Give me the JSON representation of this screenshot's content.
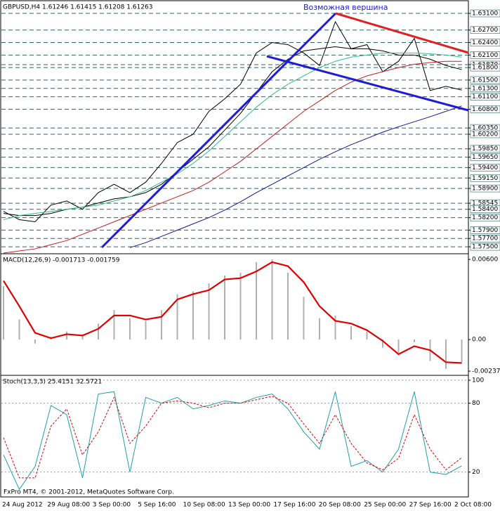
{
  "chart_data": [
    {
      "type": "line",
      "title": "GBPUSD,H4  1.61246 1.61415 1.61208 1.61263",
      "annotation": "Возможная вершина",
      "ylim": [
        1.5735,
        1.6337
      ],
      "grid": true,
      "yticks": [
        {
          "value": 1.631,
          "label": "1.63100"
        },
        {
          "value": 1.627,
          "label": "1.62700"
        },
        {
          "value": 1.624,
          "label": "1.62400"
        },
        {
          "value": 1.621,
          "label": "1.62100"
        },
        {
          "value": 1.6187,
          "label": "1.61870"
        },
        {
          "value": 1.618,
          "label": "1.61800"
        },
        {
          "value": 1.615,
          "label": "1.61500"
        },
        {
          "value": 1.613,
          "label": "1.61300"
        },
        {
          "value": 1.611,
          "label": "1.61100"
        },
        {
          "value": 1.608,
          "label": "1.60800"
        },
        {
          "value": 1.6035,
          "label": "1.60350"
        },
        {
          "value": 1.602,
          "label": "1.60200"
        },
        {
          "value": 1.5985,
          "label": "1.59850"
        },
        {
          "value": 1.5965,
          "label": "1.59650"
        },
        {
          "value": 1.594,
          "label": "1.59400"
        },
        {
          "value": 1.5915,
          "label": "1.59150"
        },
        {
          "value": 1.589,
          "label": "1.58900"
        },
        {
          "value": 1.58545,
          "label": "1.58545"
        },
        {
          "value": 1.584,
          "label": "1.58400"
        },
        {
          "value": 1.582,
          "label": "1.58200"
        },
        {
          "value": 1.579,
          "label": "1.57900"
        },
        {
          "value": 1.577,
          "label": "1.57700"
        },
        {
          "value": 1.575,
          "label": "1.57500"
        }
      ],
      "x_axis_labels": [
        "24 Aug 2012",
        "29 Aug 08:00",
        "3 Sep 00:00",
        "5 Sep 16:00",
        "10 Sep 08:00",
        "13 Sep 00:00",
        "17 Sep 16:00",
        "20 Sep 08:00",
        "25 Sep 00:00",
        "27 Sep 16:00",
        "2 Oct 08:00"
      ],
      "series": [
        {
          "color": "#000000",
          "values": [
            1.5835,
            1.5815,
            1.581,
            1.585,
            1.586,
            1.584,
            1.588,
            1.59,
            1.588,
            1.5905,
            1.595,
            1.6,
            1.602,
            1.6075,
            1.6105,
            1.614,
            1.6215,
            1.624,
            1.6235,
            1.6215,
            1.6185,
            1.629,
            1.6225,
            1.6235,
            1.617,
            1.6195,
            1.625,
            1.6125,
            1.6135,
            1.6126
          ]
        },
        {
          "color": "#000000",
          "values": [
            1.583,
            1.5825,
            1.5825,
            1.583,
            1.584,
            1.5845,
            1.5855,
            1.5865,
            1.587,
            1.588,
            1.59,
            1.593,
            1.596,
            1.599,
            1.603,
            1.607,
            1.612,
            1.617,
            1.62,
            1.622,
            1.6225,
            1.623,
            1.6225,
            1.6225,
            1.622,
            1.621,
            1.621,
            1.62,
            1.6185,
            1.6175
          ]
        },
        {
          "color": "#2fbf7f",
          "values": [
            1.5815,
            1.5825,
            1.583,
            1.5835,
            1.584,
            1.5845,
            1.585,
            1.586,
            1.587,
            1.5885,
            1.5905,
            1.5925,
            1.595,
            1.598,
            1.6015,
            1.605,
            1.6085,
            1.6115,
            1.614,
            1.616,
            1.618,
            1.6195,
            1.6205,
            1.621,
            1.6215,
            1.6215,
            1.6215,
            1.6213,
            1.621,
            1.6205
          ]
        },
        {
          "color": "#c81e1e",
          "values": [
            1.5735,
            1.574,
            1.5745,
            1.5755,
            1.5765,
            1.578,
            1.5795,
            1.581,
            1.5825,
            1.584,
            1.5855,
            1.587,
            1.5885,
            1.5905,
            1.593,
            1.5955,
            1.5985,
            1.6015,
            1.6045,
            1.6075,
            1.61,
            1.6125,
            1.6145,
            1.616,
            1.617,
            1.618,
            1.6188,
            1.6192,
            1.6195,
            1.6195
          ]
        },
        {
          "color": "#16169c",
          "values": [
            null,
            null,
            null,
            null,
            null,
            null,
            null,
            null,
            1.5748,
            1.576,
            1.5775,
            1.579,
            1.5805,
            1.582,
            1.5838,
            1.5858,
            1.588,
            1.59,
            1.592,
            1.594,
            1.596,
            1.5978,
            1.5995,
            1.601,
            1.6025,
            1.6038,
            1.605,
            1.6062,
            1.6075,
            1.6088
          ]
        }
      ]
    },
    {
      "type": "line",
      "title": "MACD(12,26,9) -0.001713 -0.001759",
      "ylim": [
        -0.00263,
        0.00632
      ],
      "grid": false,
      "yticks": [
        {
          "value": 0.006,
          "label": "0.00600"
        },
        {
          "value": 0,
          "label": "0.00"
        },
        {
          "value": -0.00237,
          "label": "-0.00237"
        }
      ],
      "series": [
        {
          "color": "#b0b0b0",
          "style": "bar",
          "values": [
            0.004,
            0.0015,
            -0.0003,
            0.0002,
            0.0006,
            0.0004,
            0.0012,
            0.0022,
            0.0016,
            0.0014,
            0.0022,
            0.0034,
            0.0036,
            0.0042,
            0.0048,
            0.005,
            0.0058,
            0.006,
            0.005,
            0.0032,
            0.0016,
            0.0018,
            0.001,
            0.0006,
            -0.0006,
            -0.001,
            -0.0002,
            -0.0016,
            -0.0022,
            -0.001713
          ]
        },
        {
          "color": "#e00000",
          "style": "thick",
          "values": [
            0.0044,
            0.0025,
            0.0005,
            0.0001,
            0.0004,
            0.0003,
            0.0008,
            0.0018,
            0.0018,
            0.0015,
            0.0017,
            0.003,
            0.0034,
            0.0037,
            0.0045,
            0.0046,
            0.0051,
            0.0058,
            0.0055,
            0.0043,
            0.0025,
            0.0014,
            0.0012,
            0.0007,
            -0.0001,
            -0.0011,
            -0.0005,
            -0.0008,
            -0.0017,
            -0.001759
          ]
        }
      ]
    },
    {
      "type": "line",
      "title": "Stoch(13,3,3) 25.4151 32.5721",
      "ylim": [
        -1,
        103
      ],
      "grid": true,
      "yticks": [
        100,
        80,
        20
      ],
      "series": [
        {
          "color": "#20a0a8",
          "values": [
            35,
            5,
            25,
            78,
            70,
            15,
            88,
            90,
            20,
            85,
            80,
            85,
            75,
            78,
            82,
            80,
            85,
            88,
            75,
            55,
            40,
            90,
            25,
            30,
            20,
            40,
            90,
            20,
            18,
            25.4151
          ]
        },
        {
          "color": "#e00000",
          "style": "dashed",
          "values": [
            50,
            15,
            15,
            60,
            75,
            35,
            55,
            85,
            45,
            60,
            80,
            82,
            80,
            76,
            80,
            80,
            83,
            86,
            80,
            62,
            45,
            70,
            45,
            28,
            22,
            32,
            70,
            40,
            22,
            32.5721
          ]
        }
      ]
    }
  ],
  "footer": "FxPro MT4, © 2001-2012, MetaQuotes Software Corp."
}
